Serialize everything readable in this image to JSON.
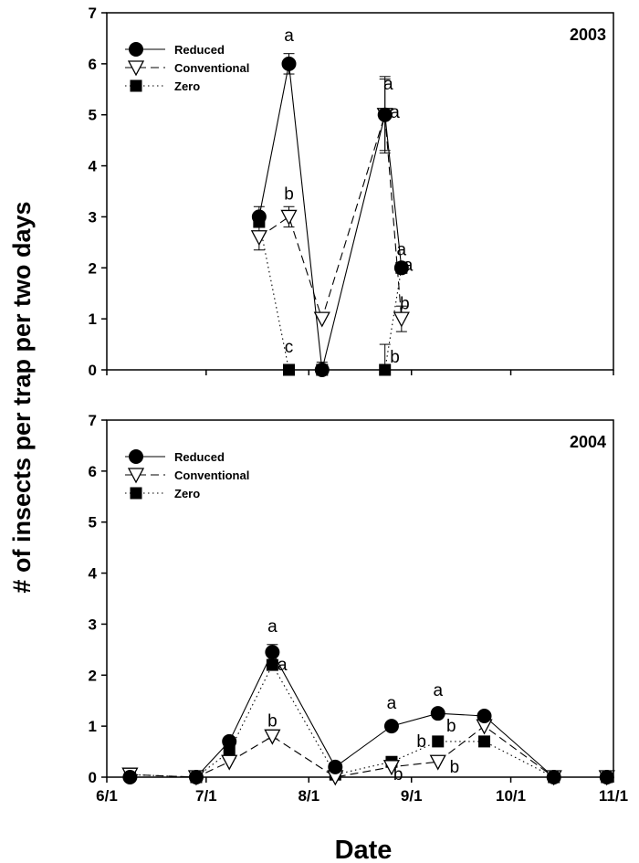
{
  "chart_data": [
    {
      "type": "line",
      "panel_label": "2003",
      "x_ticks": [
        "6/1",
        "7/1",
        "8/1",
        "9/1",
        "10/1",
        "11/1"
      ],
      "xlim": [
        "2003-06-01",
        "2003-11-01"
      ],
      "ylim": [
        0,
        7
      ],
      "y_ticks": [
        "0",
        "1",
        "2",
        "3",
        "4",
        "5",
        "6",
        "7"
      ],
      "legend_position": "top-left",
      "series": [
        {
          "name": "Reduced",
          "marker": "filled-circle",
          "line": "solid",
          "points": [
            {
              "x": "2003-07-17",
              "y": 3.0,
              "err": 0.2
            },
            {
              "x": "2003-07-26",
              "y": 6.0,
              "err": 0.2
            },
            {
              "x": "2003-08-05",
              "y": 0.0,
              "err": 0.15
            },
            {
              "x": "2003-08-24",
              "y": 5.0,
              "err": 0.75
            },
            {
              "x": "2003-08-29",
              "y": 2.0,
              "err": 0.0
            }
          ]
        },
        {
          "name": "Conventional",
          "marker": "open-triangle-down",
          "line": "dashed",
          "points": [
            {
              "x": "2003-07-17",
              "y": 2.6,
              "err": 0.25
            },
            {
              "x": "2003-07-26",
              "y": 3.0,
              "err": 0.2
            },
            {
              "x": "2003-08-05",
              "y": 1.0,
              "err": 0.0
            },
            {
              "x": "2003-08-24",
              "y": 5.0,
              "err": 0.7
            },
            {
              "x": "2003-08-29",
              "y": 1.0,
              "err": 0.25
            }
          ]
        },
        {
          "name": "Zero",
          "marker": "filled-square",
          "line": "dotted",
          "points": [
            {
              "x": "2003-07-17",
              "y": 2.9,
              "err": 0.1
            },
            {
              "x": "2003-07-26",
              "y": 0.0,
              "err": 0.1
            },
            {
              "x": "2003-08-05",
              "y": 0.0,
              "err": 0.1
            },
            {
              "x": "2003-08-24",
              "y": 0.0,
              "err": 0.5
            },
            {
              "x": "2003-08-29",
              "y": 2.0,
              "err": 0.0
            }
          ]
        }
      ],
      "annotations": [
        {
          "text": "a",
          "x": "2003-07-26",
          "y": 6.55
        },
        {
          "text": "b",
          "x": "2003-07-26",
          "y": 3.45
        },
        {
          "text": "c",
          "x": "2003-07-26",
          "y": 0.45
        },
        {
          "text": "a",
          "x": "2003-08-25",
          "y": 5.6
        },
        {
          "text": "a",
          "x": "2003-08-27",
          "y": 5.05
        },
        {
          "text": "a",
          "x": "2003-08-29",
          "y": 2.35
        },
        {
          "text": "a",
          "x": "2003-08-31",
          "y": 2.05
        },
        {
          "text": "b",
          "x": "2003-08-30",
          "y": 1.3
        },
        {
          "text": "b",
          "x": "2003-08-27",
          "y": 0.25
        }
      ]
    },
    {
      "type": "line",
      "panel_label": "2004",
      "x_ticks": [
        "6/1",
        "7/1",
        "8/1",
        "9/1",
        "10/1",
        "11/1"
      ],
      "xlim": [
        "2004-06-01",
        "2004-11-01"
      ],
      "ylim": [
        0,
        7
      ],
      "y_ticks": [
        "0",
        "1",
        "2",
        "3",
        "4",
        "5",
        "6",
        "7"
      ],
      "xlabel": "Date",
      "ylabel": "# of insects per trap per two days",
      "legend_position": "top-left",
      "series": [
        {
          "name": "Reduced",
          "marker": "filled-circle",
          "line": "solid",
          "points": [
            {
              "x": "2004-06-08",
              "y": 0.0,
              "err": 0.0
            },
            {
              "x": "2004-06-28",
              "y": 0.0,
              "err": 0.0
            },
            {
              "x": "2004-07-08",
              "y": 0.7,
              "err": 0.0
            },
            {
              "x": "2004-07-21",
              "y": 2.45,
              "err": 0.15
            },
            {
              "x": "2004-08-09",
              "y": 0.2,
              "err": 0.0
            },
            {
              "x": "2004-08-26",
              "y": 1.0,
              "err": 0.0
            },
            {
              "x": "2004-09-09",
              "y": 1.25,
              "err": 0.0
            },
            {
              "x": "2004-09-23",
              "y": 1.2,
              "err": 0.08
            },
            {
              "x": "2004-10-14",
              "y": 0.0,
              "err": 0.0
            },
            {
              "x": "2004-10-30",
              "y": 0.0,
              "err": 0.0
            }
          ]
        },
        {
          "name": "Conventional",
          "marker": "open-triangle-down",
          "line": "dashed",
          "points": [
            {
              "x": "2004-06-08",
              "y": 0.05,
              "err": 0.0
            },
            {
              "x": "2004-06-28",
              "y": 0.0,
              "err": 0.0
            },
            {
              "x": "2004-07-08",
              "y": 0.3,
              "err": 0.0
            },
            {
              "x": "2004-07-21",
              "y": 0.8,
              "err": 0.05
            },
            {
              "x": "2004-08-09",
              "y": 0.0,
              "err": 0.0
            },
            {
              "x": "2004-08-26",
              "y": 0.2,
              "err": 0.0
            },
            {
              "x": "2004-09-09",
              "y": 0.3,
              "err": 0.0
            },
            {
              "x": "2004-09-23",
              "y": 1.0,
              "err": 0.0
            },
            {
              "x": "2004-10-14",
              "y": 0.0,
              "err": 0.0
            },
            {
              "x": "2004-10-30",
              "y": 0.0,
              "err": 0.0
            }
          ]
        },
        {
          "name": "Zero",
          "marker": "filled-square",
          "line": "dotted",
          "points": [
            {
              "x": "2004-06-08",
              "y": 0.05,
              "err": 0.0
            },
            {
              "x": "2004-06-28",
              "y": 0.0,
              "err": 0.0
            },
            {
              "x": "2004-07-08",
              "y": 0.5,
              "err": 0.0
            },
            {
              "x": "2004-07-21",
              "y": 2.2,
              "err": 0.1
            },
            {
              "x": "2004-08-09",
              "y": 0.05,
              "err": 0.0
            },
            {
              "x": "2004-08-26",
              "y": 0.3,
              "err": 0.0
            },
            {
              "x": "2004-09-09",
              "y": 0.7,
              "err": 0.0
            },
            {
              "x": "2004-09-23",
              "y": 0.7,
              "err": 0.0
            },
            {
              "x": "2004-10-14",
              "y": 0.0,
              "err": 0.0
            },
            {
              "x": "2004-10-30",
              "y": 0.0,
              "err": 0.0
            }
          ]
        }
      ],
      "annotations": [
        {
          "text": "a",
          "x": "2004-07-21",
          "y": 2.95
        },
        {
          "text": "a",
          "x": "2004-07-24",
          "y": 2.2
        },
        {
          "text": "b",
          "x": "2004-07-21",
          "y": 1.1
        },
        {
          "text": "a",
          "x": "2004-08-26",
          "y": 1.45
        },
        {
          "text": "b",
          "x": "2004-08-28",
          "y": 0.05
        },
        {
          "text": "a",
          "x": "2004-09-09",
          "y": 1.7
        },
        {
          "text": "b",
          "x": "2004-09-04",
          "y": 0.7
        },
        {
          "text": "b",
          "x": "2004-09-13",
          "y": 1.0
        },
        {
          "text": "b",
          "x": "2004-09-14",
          "y": 0.2
        }
      ]
    }
  ]
}
